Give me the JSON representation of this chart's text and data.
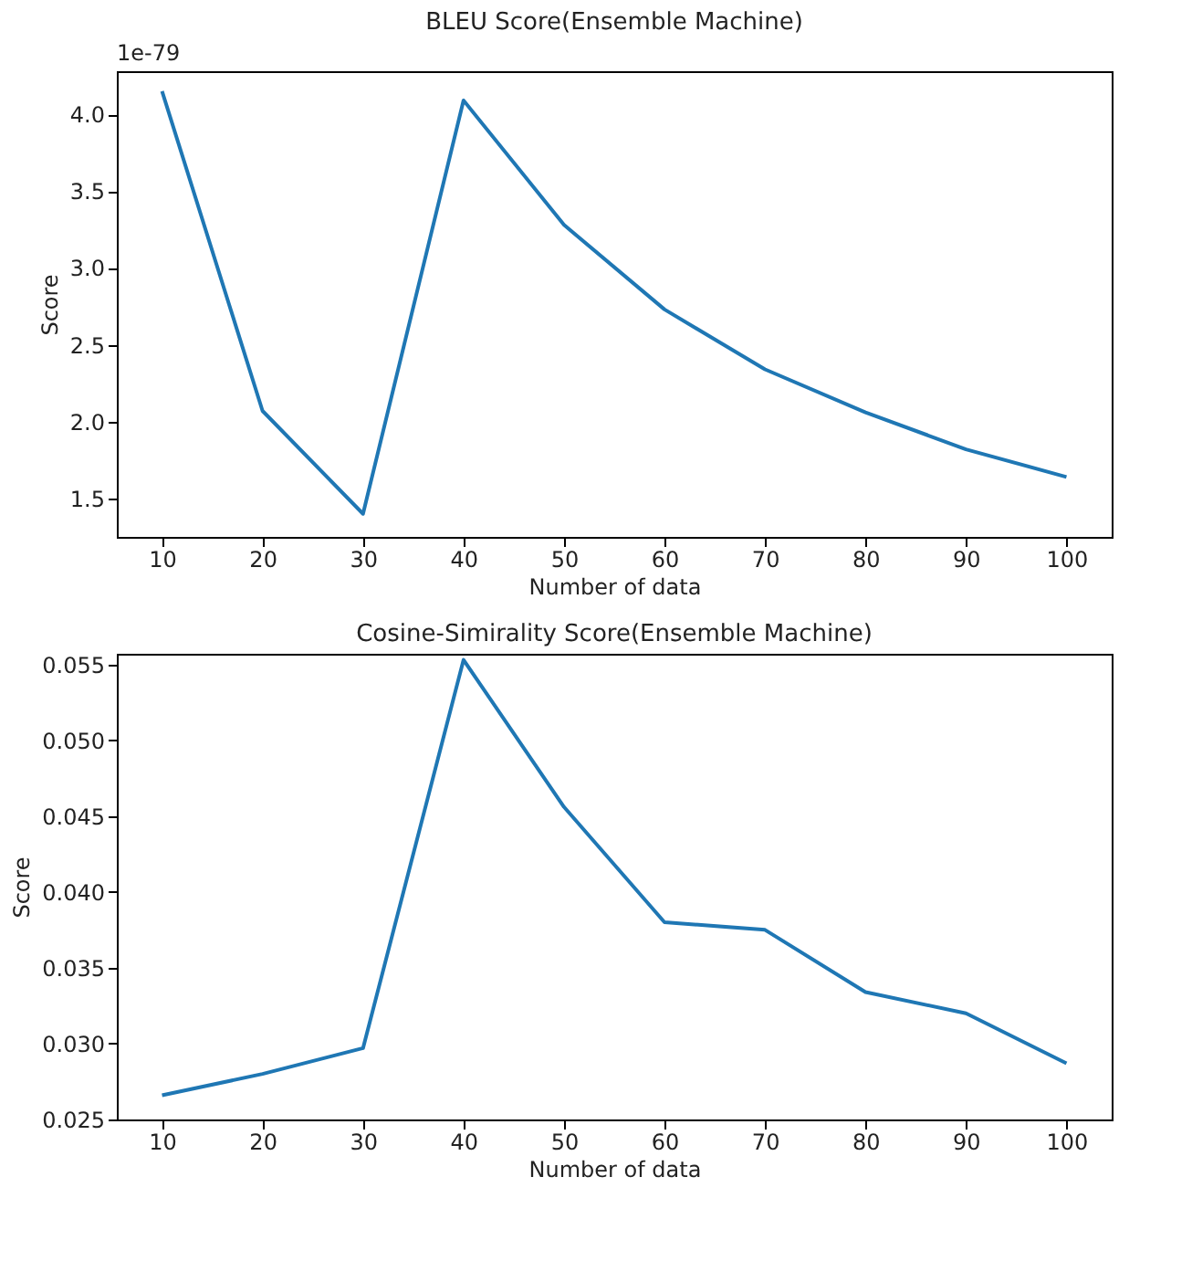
{
  "chart_data": [
    {
      "type": "line",
      "title": "BLEU Score(Ensemble Machine)",
      "xlabel": "Number of data",
      "ylabel": "Score",
      "annotations": [
        "1e-79"
      ],
      "x": [
        10,
        20,
        30,
        40,
        50,
        60,
        70,
        80,
        90,
        100
      ],
      "series": [
        {
          "color": "#1f77b4",
          "values": [
            4.15,
            2.07,
            1.4,
            4.09,
            3.28,
            2.73,
            2.34,
            2.06,
            1.82,
            1.64
          ]
        }
      ],
      "xlim": [
        5.5,
        104.5
      ],
      "xticks": [
        10,
        20,
        30,
        40,
        50,
        60,
        70,
        80,
        90,
        100
      ],
      "ylim": [
        1.25,
        4.28
      ],
      "yticks": [
        {
          "value": 1.5,
          "label": "1.5"
        },
        {
          "value": 2.0,
          "label": "2.0"
        },
        {
          "value": 2.5,
          "label": "2.5"
        },
        {
          "value": 3.0,
          "label": "3.0"
        },
        {
          "value": 3.5,
          "label": "3.5"
        },
        {
          "value": 4.0,
          "label": "4.0"
        }
      ],
      "grid": false
    },
    {
      "type": "line",
      "title": "Cosine-Simirality Score(Ensemble Machine)",
      "xlabel": "Number of data",
      "ylabel": "Score",
      "x": [
        10,
        20,
        30,
        40,
        50,
        60,
        70,
        80,
        90,
        100
      ],
      "series": [
        {
          "color": "#1f77b4",
          "values": [
            0.0266,
            0.028,
            0.0297,
            0.0553,
            0.0456,
            0.038,
            0.0375,
            0.0334,
            0.032,
            0.0287
          ]
        }
      ],
      "xlim": [
        5.5,
        104.5
      ],
      "xticks": [
        10,
        20,
        30,
        40,
        50,
        60,
        70,
        80,
        90,
        100
      ],
      "ylim": [
        0.025,
        0.0557
      ],
      "yticks": [
        {
          "value": 0.025,
          "label": "0.025"
        },
        {
          "value": 0.03,
          "label": "0.030"
        },
        {
          "value": 0.035,
          "label": "0.035"
        },
        {
          "value": 0.04,
          "label": "0.040"
        },
        {
          "value": 0.045,
          "label": "0.045"
        },
        {
          "value": 0.05,
          "label": "0.050"
        },
        {
          "value": 0.055,
          "label": "0.055"
        }
      ],
      "grid": false
    }
  ]
}
